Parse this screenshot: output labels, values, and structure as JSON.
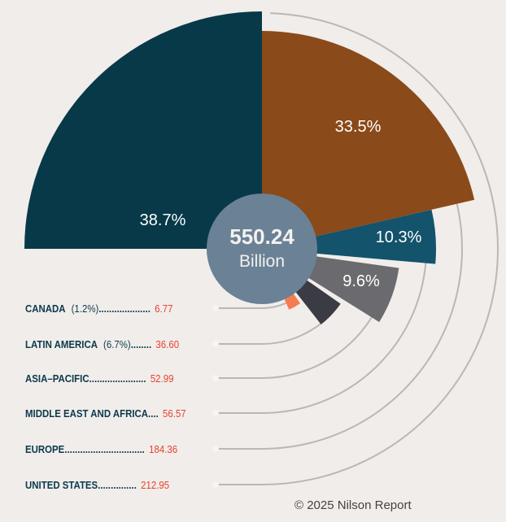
{
  "chart_data": {
    "type": "pie",
    "title": "",
    "total_value": "550.24",
    "total_unit": "Billion",
    "series": [
      {
        "name": "UNITED STATES",
        "value": 212.95,
        "percent_label": "38.7%",
        "color": "#073949"
      },
      {
        "name": "EUROPE",
        "value": 184.36,
        "percent_label": "33.5%",
        "color": "#8a4a1a"
      },
      {
        "name": "MIDDLE EAST AND AFRICA",
        "value": 56.57,
        "percent_label": "10.3%",
        "color": "#13536b"
      },
      {
        "name": "ASIA–PACIFIC",
        "value": 52.99,
        "percent_label": "9.6%",
        "color": "#6b6b6f"
      },
      {
        "name": "LATIN AMERICA",
        "value": 36.6,
        "percent_label": "(6.7%)",
        "color": "#3b3b43"
      },
      {
        "name": "CANADA",
        "value": 6.77,
        "percent_label": "(1.2%)",
        "color": "#f47c50"
      }
    ],
    "legend": [
      {
        "name": "CANADA",
        "pct": "(1.2%)",
        "dots": "....................",
        "value": "6.77"
      },
      {
        "name": "LATIN AMERICA",
        "pct": "(6.7%)",
        "dots": "........",
        "value": "36.60"
      },
      {
        "name": "ASIA–PACIFIC",
        "pct": "",
        "dots": "......................",
        "value": "52.99"
      },
      {
        "name": "MIDDLE EAST AND AFRICA",
        "pct": "",
        "dots": " ....",
        "value": "56.57"
      },
      {
        "name": "EUROPE",
        "pct": "",
        "dots": "...............................",
        "value": "184.36"
      },
      {
        "name": "UNITED STATES",
        "pct": "",
        "dots": "...............",
        "value": "212.95"
      }
    ]
  },
  "footer": {
    "copyright": "© 2025 Nilson Report"
  }
}
